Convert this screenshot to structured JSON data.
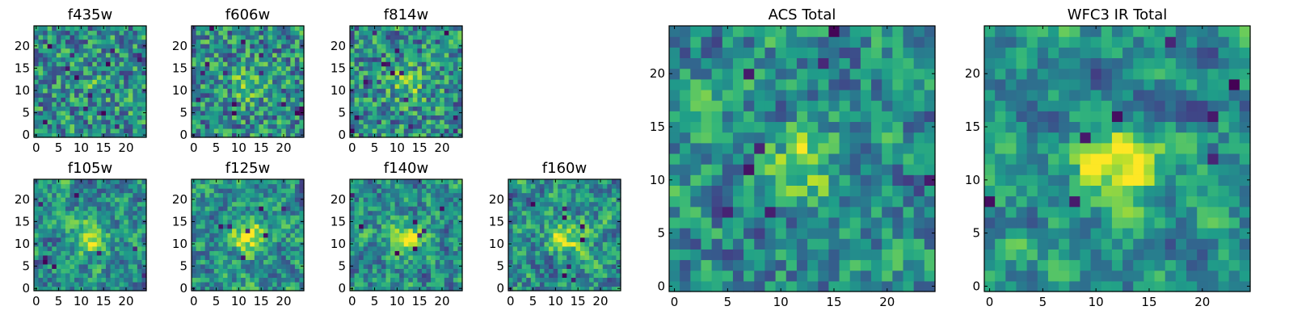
{
  "chart_data": [
    {
      "type": "heatmap",
      "title": "f435w",
      "size": 25,
      "xticks": [
        0,
        5,
        10,
        15,
        20
      ],
      "yticks": [
        0,
        5,
        10,
        15,
        20
      ],
      "blob": 0.15,
      "smooth": 0,
      "seed": 11
    },
    {
      "type": "heatmap",
      "title": "f606w",
      "size": 25,
      "xticks": [
        0,
        5,
        10,
        15,
        20
      ],
      "yticks": [
        0,
        5,
        10,
        15,
        20
      ],
      "blob": 0.45,
      "smooth": 0,
      "seed": 23
    },
    {
      "type": "heatmap",
      "title": "f814w",
      "size": 25,
      "xticks": [
        0,
        5,
        10,
        15,
        20
      ],
      "yticks": [
        0,
        5,
        10,
        15,
        20
      ],
      "blob": 0.45,
      "smooth": 0,
      "seed": 37
    },
    {
      "type": "heatmap",
      "title": "f105w",
      "size": 25,
      "xticks": [
        0,
        5,
        10,
        15,
        20
      ],
      "yticks": [
        0,
        5,
        10,
        15,
        20
      ],
      "blob": 0.8,
      "smooth": 1,
      "seed": 41
    },
    {
      "type": "heatmap",
      "title": "f125w",
      "size": 25,
      "xticks": [
        0,
        5,
        10,
        15,
        20
      ],
      "yticks": [
        0,
        5,
        10,
        15,
        20
      ],
      "blob": 0.8,
      "smooth": 1,
      "seed": 53
    },
    {
      "type": "heatmap",
      "title": "f140w",
      "size": 25,
      "xticks": [
        0,
        5,
        10,
        15,
        20
      ],
      "yticks": [
        0,
        5,
        10,
        15,
        20
      ],
      "blob": 0.7,
      "smooth": 1,
      "seed": 67
    },
    {
      "type": "heatmap",
      "title": "f160w",
      "size": 25,
      "xticks": [
        0,
        5,
        10,
        15,
        20
      ],
      "yticks": [
        0,
        5,
        10,
        15,
        20
      ],
      "blob": 0.8,
      "smooth": 1,
      "seed": 79
    },
    {
      "type": "heatmap",
      "title": "ACS Total",
      "size": 25,
      "xticks": [
        0,
        5,
        10,
        15,
        20
      ],
      "yticks": [
        0,
        5,
        10,
        15,
        20
      ],
      "blob": 0.6,
      "smooth": 1,
      "seed": 83
    },
    {
      "type": "heatmap",
      "title": "WFC3 IR Total",
      "size": 25,
      "xticks": [
        0,
        5,
        10,
        15,
        20
      ],
      "yticks": [
        0,
        5,
        10,
        15,
        20
      ],
      "blob": 1.0,
      "smooth": 2,
      "seed": 97
    }
  ]
}
